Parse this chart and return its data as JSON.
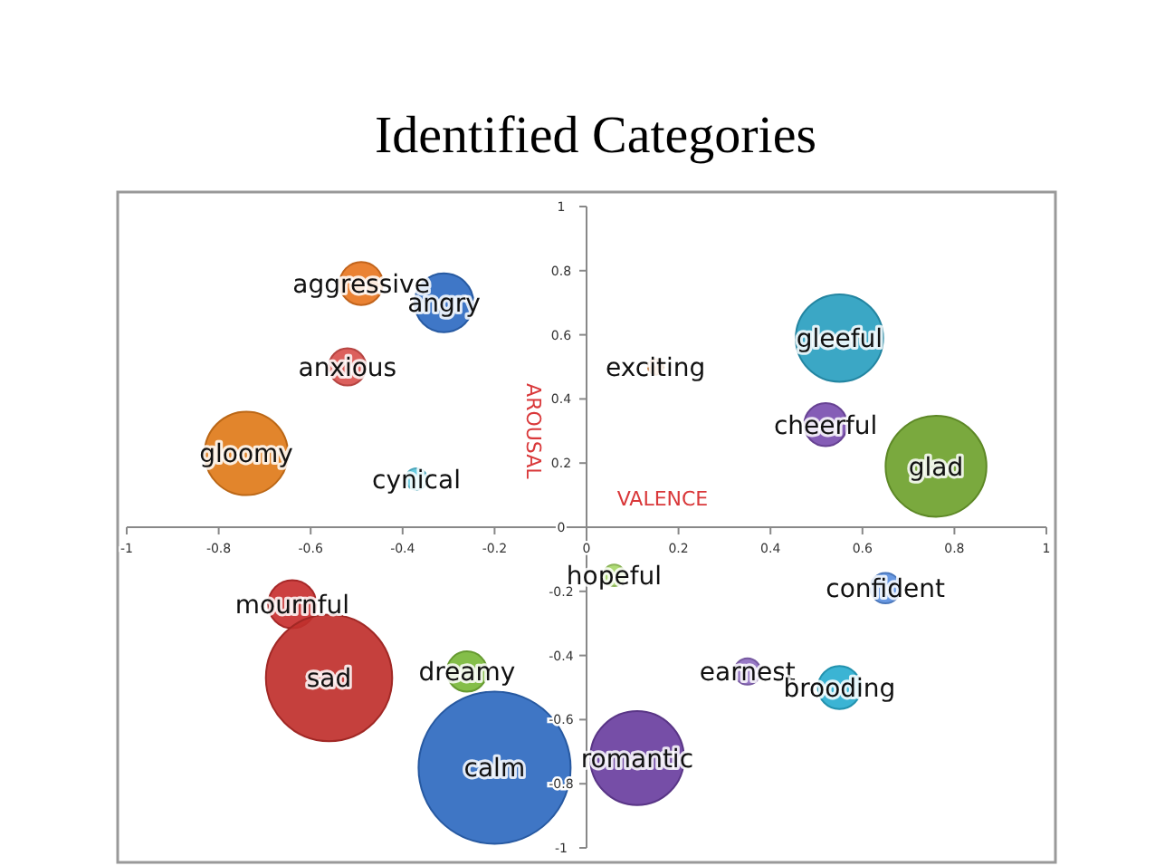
{
  "chart_data": {
    "type": "bubble",
    "title": "Identified Categories",
    "xlabel": "VALENCE",
    "ylabel": "AROUSAL",
    "xlim": [
      -1,
      1
    ],
    "ylim": [
      -1,
      1
    ],
    "xticks": [
      -1,
      -0.8,
      -0.6,
      -0.4,
      -0.2,
      0,
      0.2,
      0.4,
      0.6,
      0.8,
      1
    ],
    "yticks": [
      -1,
      -0.8,
      -0.6,
      -0.4,
      -0.2,
      0,
      0.2,
      0.4,
      0.6,
      0.8,
      1
    ],
    "series": [
      {
        "name": "aggressive",
        "color": "#e87722",
        "x": [
          -0.49
        ],
        "values": [
          0.76
        ],
        "sizes": [
          0.08
        ]
      },
      {
        "name": "angry",
        "color": "#2f6bc2",
        "x": [
          -0.31
        ],
        "values": [
          0.7
        ],
        "sizes": [
          0.15
        ]
      },
      {
        "name": "anxious",
        "color": "#d9534f",
        "x": [
          -0.52
        ],
        "values": [
          0.5
        ],
        "sizes": [
          0.06
        ]
      },
      {
        "name": "gloomy",
        "color": "#e07b1a",
        "x": [
          -0.74
        ],
        "values": [
          0.23
        ],
        "sizes": [
          0.3
        ]
      },
      {
        "name": "cynical",
        "color": "#5bc8e0",
        "x": [
          -0.37
        ],
        "values": [
          0.15
        ],
        "sizes": [
          0.02
        ]
      },
      {
        "name": "exciting",
        "color": "#e89a5a",
        "x": [
          0.15
        ],
        "values": [
          0.5
        ],
        "sizes": [
          0.01
        ]
      },
      {
        "name": "gleeful",
        "color": "#2a9fc0",
        "x": [
          0.55
        ],
        "values": [
          0.59
        ],
        "sizes": [
          0.33
        ]
      },
      {
        "name": "cheerful",
        "color": "#7b4fb0",
        "x": [
          0.52
        ],
        "values": [
          0.32
        ],
        "sizes": [
          0.08
        ]
      },
      {
        "name": "glad",
        "color": "#6fa22e",
        "x": [
          0.76
        ],
        "values": [
          0.19
        ],
        "sizes": [
          0.44
        ]
      },
      {
        "name": "hopeful",
        "color": "#a8d86a",
        "x": [
          0.06
        ],
        "values": [
          -0.15
        ],
        "sizes": [
          0.02
        ]
      },
      {
        "name": "confident",
        "color": "#5b8fe0",
        "x": [
          0.65
        ],
        "values": [
          -0.19
        ],
        "sizes": [
          0.04
        ]
      },
      {
        "name": "earnest",
        "color": "#8e6cc0",
        "x": [
          0.35
        ],
        "values": [
          -0.45
        ],
        "sizes": [
          0.03
        ]
      },
      {
        "name": "brooding",
        "color": "#2aaed0",
        "x": [
          0.55
        ],
        "values": [
          -0.5
        ],
        "sizes": [
          0.08
        ]
      },
      {
        "name": "romantic",
        "color": "#6a3fa0",
        "x": [
          0.11
        ],
        "values": [
          -0.72
        ],
        "sizes": [
          0.38
        ]
      },
      {
        "name": "mournful",
        "color": "#c83030",
        "x": [
          -0.64
        ],
        "values": [
          -0.24
        ],
        "sizes": [
          0.1
        ]
      },
      {
        "name": "sad",
        "color": "#c0302c",
        "x": [
          -0.56
        ],
        "values": [
          -0.47
        ],
        "sizes": [
          0.69
        ]
      },
      {
        "name": "dreamy",
        "color": "#7ab83a",
        "x": [
          -0.26
        ],
        "values": [
          -0.45
        ],
        "sizes": [
          0.07
        ]
      },
      {
        "name": "calm",
        "color": "#2f6ac0",
        "x": [
          -0.2
        ],
        "values": [
          -0.75
        ],
        "sizes": [
          1
        ]
      }
    ]
  }
}
